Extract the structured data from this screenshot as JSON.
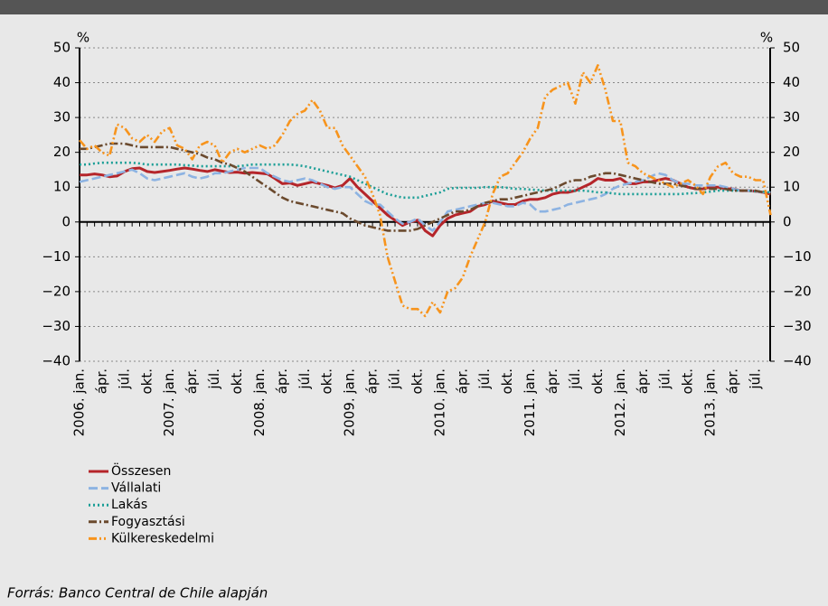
{
  "chart_data": {
    "type": "line",
    "y_unit": "%",
    "source": "Forrás: Banco Central de Chile alapján",
    "categories": [
      "2006. jan.",
      null,
      null,
      "ápr.",
      null,
      null,
      "júl.",
      null,
      null,
      "okt.",
      null,
      null,
      "2007. jan.",
      null,
      null,
      "ápr.",
      null,
      null,
      "júl.",
      null,
      null,
      "okt.",
      null,
      null,
      "2008. jan.",
      null,
      null,
      "ápr.",
      null,
      null,
      "júl.",
      null,
      null,
      "okt.",
      null,
      null,
      "2009. jan.",
      null,
      null,
      "ápr.",
      null,
      null,
      "júl.",
      null,
      null,
      "okt.",
      null,
      null,
      "2010. jan.",
      null,
      null,
      "ápr.",
      null,
      null,
      "júl.",
      null,
      null,
      "okt.",
      null,
      null,
      "2011. jan.",
      null,
      null,
      "ápr.",
      null,
      null,
      "júl.",
      null,
      null,
      "okt.",
      null,
      null,
      "2012. jan.",
      null,
      null,
      "ápr.",
      null,
      null,
      "júl.",
      null,
      null,
      "okt.",
      null,
      null,
      "2013. jan.",
      null,
      null,
      "ápr.",
      null,
      null,
      "júl.",
      null,
      null
    ],
    "series": [
      {
        "name": "Összesen",
        "color": "#b5252a",
        "dash": "solid",
        "values": [
          13.5,
          13.5,
          13.8,
          13.5,
          13,
          13.2,
          14.5,
          15.3,
          15.5,
          14.5,
          14.2,
          14.5,
          14.8,
          15.2,
          15.5,
          15.2,
          14.8,
          14.5,
          15,
          14.6,
          14.2,
          14.3,
          14,
          14.2,
          14,
          13.8,
          12.5,
          11,
          11.2,
          10.5,
          11,
          11.5,
          11,
          10.5,
          9.8,
          10.5,
          12.5,
          10,
          8,
          6,
          4,
          2,
          0.5,
          -1,
          0,
          0.5,
          -2.5,
          -4,
          -1,
          1,
          2,
          2.5,
          3,
          4.5,
          5,
          6,
          5.5,
          5,
          5,
          6,
          6.5,
          6.5,
          7,
          8,
          8.5,
          8.5,
          9,
          10,
          11,
          12.5,
          12,
          12,
          12.5,
          11,
          11,
          11.5,
          11.5,
          12,
          12.5,
          12,
          11,
          10,
          9.5,
          9.5,
          10,
          10,
          9.5,
          9.5,
          9,
          9,
          8.8,
          8.5,
          8
        ]
      },
      {
        "name": "Vállalati",
        "color": "#8db3e2",
        "dash": "dashed",
        "values": [
          11.5,
          12,
          12.5,
          13,
          13.5,
          14,
          14.5,
          15,
          14,
          12.5,
          12,
          12.5,
          13,
          13.5,
          14,
          13,
          12.5,
          13,
          14,
          14,
          14.5,
          15,
          15.5,
          15.5,
          15.5,
          14,
          13,
          12,
          11.5,
          12,
          12.5,
          12,
          11,
          10,
          9.5,
          10,
          10,
          8,
          6,
          5,
          5,
          3,
          1,
          -0.5,
          0,
          1,
          -1,
          -2.5,
          0,
          3,
          3.5,
          4,
          4.5,
          5,
          5.5,
          5.5,
          5,
          4.5,
          4.5,
          5.5,
          5,
          3,
          3,
          3.5,
          4,
          5,
          5.5,
          6,
          6.5,
          7,
          8,
          9.5,
          10.5,
          11,
          11.5,
          12,
          13,
          14,
          13.5,
          12,
          11,
          11,
          10.5,
          10.5,
          10.5,
          10.5,
          10,
          9.5,
          9,
          9,
          8.8,
          8.5,
          8.5
        ]
      },
      {
        "name": "Lakás",
        "color": "#1a9e96",
        "dash": "dotted",
        "values": [
          16.5,
          16.5,
          16.8,
          17,
          17,
          17,
          17,
          17,
          16.8,
          16.5,
          16.5,
          16.5,
          16.5,
          16.5,
          16.3,
          16.2,
          16,
          16,
          16,
          16,
          16,
          16,
          16.2,
          16.5,
          16.5,
          16.5,
          16.5,
          16.5,
          16.5,
          16.3,
          16,
          15.5,
          15,
          14.5,
          14,
          13.5,
          13,
          12,
          11,
          10,
          9,
          8,
          7.5,
          7,
          7,
          7,
          7.5,
          8,
          8.5,
          9.5,
          9.8,
          9.8,
          9.8,
          9.8,
          10,
          10,
          10,
          9.8,
          9.5,
          9.5,
          9.3,
          9.2,
          9,
          9,
          9,
          9,
          9,
          9,
          8.8,
          8.5,
          8.5,
          8.2,
          8,
          8,
          8,
          8,
          8,
          8,
          8,
          8,
          8,
          8.2,
          8.3,
          8.5,
          8.7,
          9,
          9,
          9,
          9,
          9,
          8.8,
          8.7,
          8.5
        ]
      },
      {
        "name": "Fogyasztási",
        "color": "#6b4a2e",
        "dash": "dashdot",
        "values": [
          21,
          21,
          21.5,
          22,
          22.5,
          22.5,
          22.5,
          22,
          21.5,
          21.5,
          21.5,
          21.5,
          21.5,
          21,
          20.5,
          20,
          19.5,
          18.5,
          18,
          17,
          16.5,
          15.5,
          14.5,
          13,
          11.5,
          10,
          8.5,
          7,
          6,
          5.5,
          5,
          4.5,
          4,
          3.5,
          3,
          2.5,
          1,
          0,
          -1,
          -1.5,
          -2,
          -2.5,
          -2.5,
          -2.5,
          -2.5,
          -2,
          -1,
          0,
          1,
          2,
          3,
          3,
          3.5,
          4.5,
          5.5,
          6,
          6.5,
          6.5,
          7,
          7.5,
          8,
          8.5,
          9,
          9.5,
          10.5,
          11.5,
          12,
          12,
          13,
          13.5,
          14,
          14,
          13.5,
          13,
          12.5,
          12,
          11.5,
          11,
          11,
          11,
          10.5,
          10,
          9.5,
          9.5,
          9.5,
          9.5,
          9.5,
          9,
          9,
          9,
          9,
          8.5,
          8
        ]
      },
      {
        "name": "Külkereskedelmi",
        "color": "#f7941d",
        "dash": "dashdotdot",
        "values": [
          23.5,
          21,
          22,
          20,
          19,
          28,
          27,
          24,
          23,
          25,
          23,
          26,
          27,
          22,
          21,
          18,
          22,
          23,
          22,
          17,
          20,
          21,
          20,
          21,
          22,
          21,
          22,
          25,
          29,
          31,
          32,
          35,
          32,
          27,
          27,
          22,
          19,
          16,
          13,
          8,
          2,
          -10,
          -17,
          -24,
          -25,
          -25,
          -27,
          -23,
          -26,
          -20,
          -19,
          -16,
          -10,
          -5,
          0,
          8,
          13,
          14,
          17,
          20,
          24,
          27,
          36,
          38,
          39,
          40,
          34,
          43,
          40,
          45,
          38,
          29,
          29,
          17,
          16,
          14,
          13,
          12,
          11,
          10,
          11,
          12,
          10.5,
          8,
          13,
          16,
          17,
          14,
          13,
          13,
          12,
          12,
          2
        ]
      }
    ],
    "ylim": [
      -40,
      50
    ],
    "yticks": [
      {
        "value": -40,
        "label": "−40"
      },
      {
        "value": -30,
        "label": "−30"
      },
      {
        "value": -20,
        "label": "−20"
      },
      {
        "value": -10,
        "label": "−10"
      },
      0,
      10,
      20,
      30,
      40,
      50
    ],
    "y2lim": [
      -40,
      50
    ],
    "y2ticks": [
      {
        "value": -40,
        "label": "−40"
      },
      {
        "value": -30,
        "label": "−30"
      },
      {
        "value": -20,
        "label": "−20"
      },
      {
        "value": -10,
        "label": "−10"
      },
      0,
      10,
      20,
      30,
      40,
      50
    ],
    "grid": true
  }
}
